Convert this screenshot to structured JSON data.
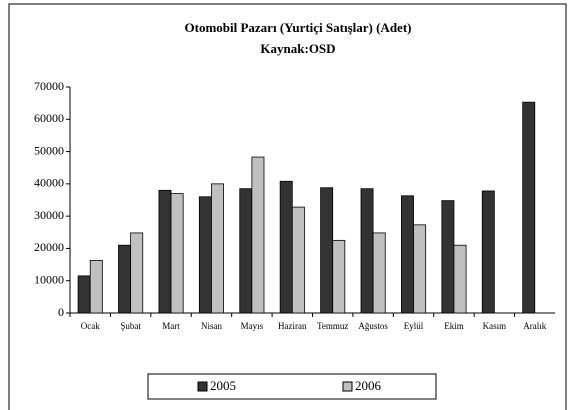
{
  "chart_data": {
    "type": "bar",
    "title": "Otomobil Pazarı (Yurtiçi Satışlar) (Adet)",
    "subtitle": "Kaynak:OSD",
    "categories": [
      "Ocak",
      "Şubat",
      "Mart",
      "Nisan",
      "Mayıs",
      "Haziran",
      "Temmuz",
      "Ağustos",
      "Eylül",
      "Ekim",
      "Kasım",
      "Aralık"
    ],
    "series": [
      {
        "name": "2005",
        "color": "#333333",
        "values": [
          11500,
          21000,
          38000,
          36000,
          38500,
          40800,
          38800,
          38500,
          36300,
          34800,
          37800,
          65300
        ]
      },
      {
        "name": "2006",
        "color": "#c0c0c0",
        "values": [
          16300,
          24800,
          37000,
          40000,
          48300,
          32800,
          22500,
          24800,
          27300,
          21000,
          null,
          null
        ]
      }
    ],
    "ylim": [
      0,
      70000
    ],
    "yticks": [
      0,
      10000,
      20000,
      30000,
      40000,
      50000,
      60000,
      70000
    ],
    "grid": false,
    "legend": "bottom"
  }
}
